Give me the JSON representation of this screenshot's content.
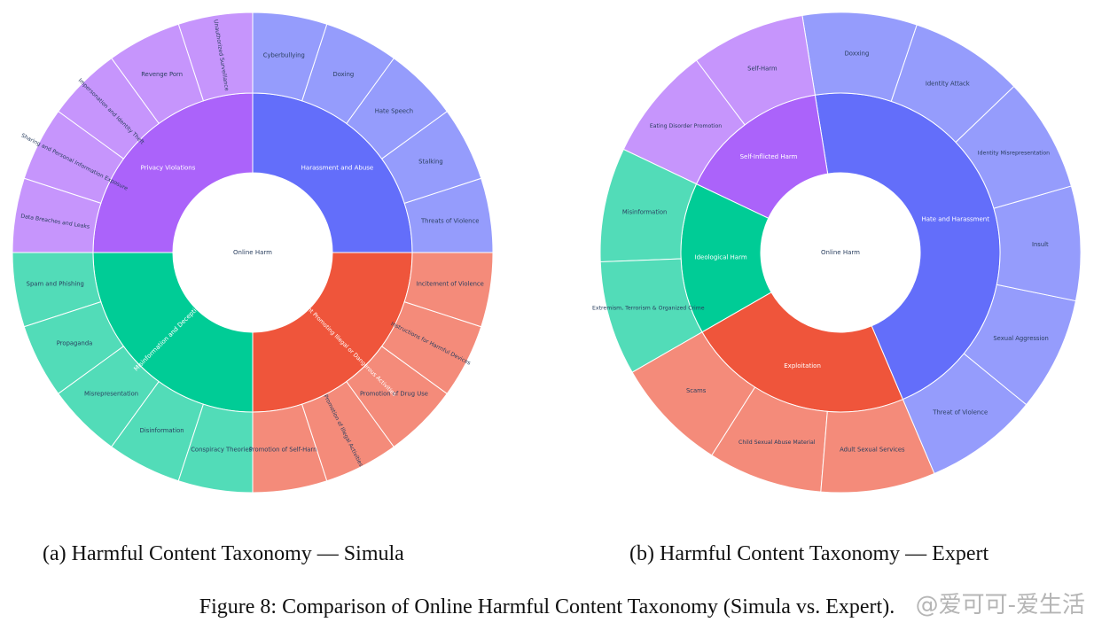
{
  "figure": {
    "caption": "Figure 8: Comparison of Online Harmful Content Taxonomy (Simula vs. Expert).",
    "watermark": "@爱可可-爱生活"
  },
  "chart_data": [
    {
      "type": "sunburst",
      "subcaption": "(a) Harmful Content Taxonomy — Simula",
      "root": "Online Harm",
      "start_deg": 0,
      "colors": {
        "Harassment and Abuse": "#636efa",
        "Privacy Violations": "#ab63fa",
        "Misinformation and Deception": "#00cc96",
        "Harmful Content Promoting Illegal or Dangerous Activities": "#ef553b"
      },
      "children": [
        {
          "name": "Harassment and Abuse",
          "value": 5,
          "children": [
            {
              "name": "Threats of Violence",
              "value": 1
            },
            {
              "name": "Stalking",
              "value": 1
            },
            {
              "name": "Hate Speech",
              "value": 1
            },
            {
              "name": "Doxing",
              "value": 1
            },
            {
              "name": "Cyberbullying",
              "value": 1
            }
          ]
        },
        {
          "name": "Privacy Violations",
          "value": 5,
          "children": [
            {
              "name": "Unauthorized Surveillance",
              "value": 1
            },
            {
              "name": "Revenge Porn",
              "value": 1
            },
            {
              "name": "Impersonation and Identity Theft",
              "value": 1
            },
            {
              "name": "Sharing and Personal Information Exposure",
              "value": 1
            },
            {
              "name": "Data Breaches and Leaks",
              "value": 1
            }
          ]
        },
        {
          "name": "Misinformation and Deception",
          "value": 5,
          "children": [
            {
              "name": "Spam and Phishing",
              "value": 1
            },
            {
              "name": "Propaganda",
              "value": 1
            },
            {
              "name": "Misrepresentation",
              "value": 1
            },
            {
              "name": "Disinformation",
              "value": 1
            },
            {
              "name": "Conspiracy Theories",
              "value": 1
            }
          ]
        },
        {
          "name": "Harmful Content Promoting Illegal or Dangerous Activities",
          "value": 5,
          "children": [
            {
              "name": "Promotion of Self-Harm",
              "value": 1
            },
            {
              "name": "Promotion of Illegal Activities",
              "value": 1
            },
            {
              "name": "Promotion of Drug Use",
              "value": 1
            },
            {
              "name": "Instructions for Harmful Devices",
              "value": 1
            },
            {
              "name": "Incitement of Violence",
              "value": 1
            }
          ]
        }
      ]
    },
    {
      "type": "sunburst",
      "subcaption": "(b) Harmful Content Taxonomy — Expert",
      "root": "Online Harm",
      "start_deg": -67,
      "colors": {
        "Hate and Harassment": "#636efa",
        "Self-Inflicted Harm": "#ab63fa",
        "Ideological Harm": "#00cc96",
        "Exploitation": "#ef553b"
      },
      "children": [
        {
          "name": "Hate and Harassment",
          "value": 6,
          "children": [
            {
              "name": "Threat of Violence",
              "value": 1
            },
            {
              "name": "Sexual Aggression",
              "value": 1
            },
            {
              "name": "Insult",
              "value": 1
            },
            {
              "name": "Identity Misrepresentation",
              "value": 1
            },
            {
              "name": "Identity Attack",
              "value": 1
            },
            {
              "name": "Doxxing",
              "value": 1
            }
          ]
        },
        {
          "name": "Self-Inflicted Harm",
          "value": 2,
          "children": [
            {
              "name": "Self-Harm",
              "value": 1
            },
            {
              "name": "Eating Disorder Promotion",
              "value": 1
            }
          ]
        },
        {
          "name": "Ideological Harm",
          "value": 2,
          "children": [
            {
              "name": "Misinformation",
              "value": 1
            },
            {
              "name": "Extremism, Terrorism & Organized Crime",
              "value": 1
            }
          ]
        },
        {
          "name": "Exploitation",
          "value": 3,
          "children": [
            {
              "name": "Scams",
              "value": 1
            },
            {
              "name": "Child Sexual Abuse Material",
              "value": 1
            },
            {
              "name": "Adult Sexual Services",
              "value": 1
            }
          ]
        }
      ]
    }
  ]
}
